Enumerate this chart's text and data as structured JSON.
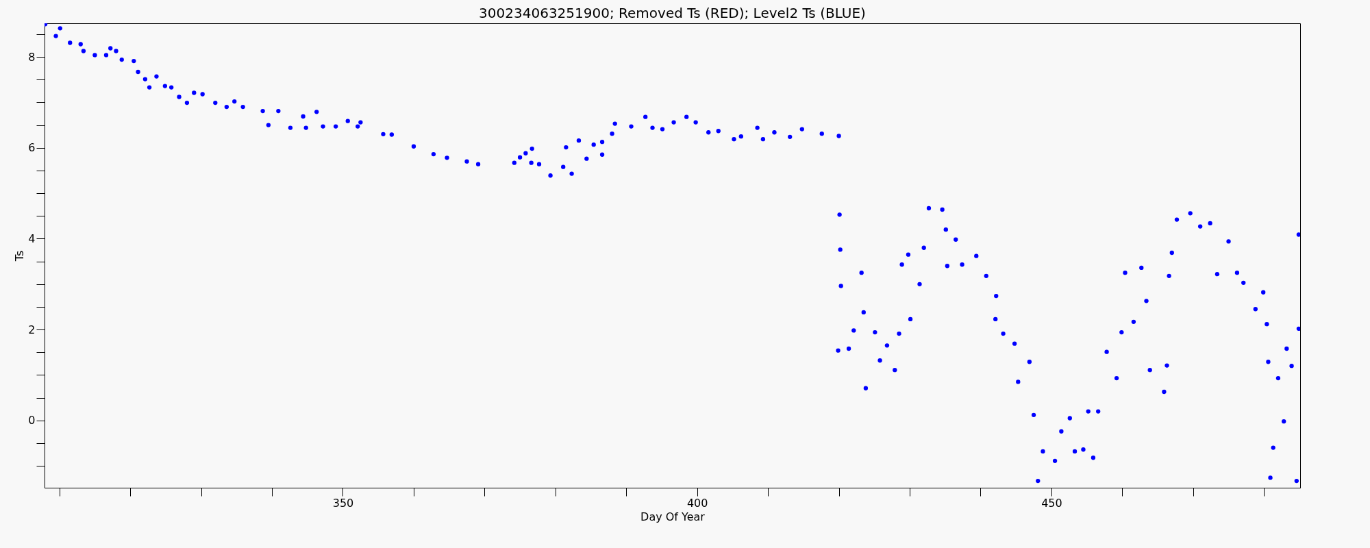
{
  "chart_data": {
    "type": "scatter",
    "title": "300234063251900; Removed Ts (RED); Level2 Ts (BLUE)",
    "xlabel": "Day Of Year",
    "ylabel": "Ts",
    "xlim": [
      307.9,
      485.1
    ],
    "xticks": [
      {
        "value": 310,
        "label": null
      },
      {
        "value": 320,
        "label": null
      },
      {
        "value": 330,
        "label": null
      },
      {
        "value": 340,
        "label": null
      },
      350,
      {
        "value": 360,
        "label": null
      },
      {
        "value": 370,
        "label": null
      },
      {
        "value": 380,
        "label": null
      },
      {
        "value": 390,
        "label": null
      },
      400,
      {
        "value": 410,
        "label": null
      },
      {
        "value": 420,
        "label": null
      },
      {
        "value": 430,
        "label": null
      },
      {
        "value": 440,
        "label": null
      },
      450,
      {
        "value": 460,
        "label": null
      },
      {
        "value": 470,
        "label": null
      },
      {
        "value": 480,
        "label": null
      }
    ],
    "ylim": [
      -1.48,
      8.74
    ],
    "yticks": [
      {
        "value": -1,
        "label": null
      },
      {
        "value": -0.5,
        "label": null
      },
      0,
      {
        "value": 0.5,
        "label": null
      },
      {
        "value": 1,
        "label": null
      },
      {
        "value": 1.5,
        "label": null
      },
      2,
      {
        "value": 2.5,
        "label": null
      },
      {
        "value": 3,
        "label": null
      },
      {
        "value": 3.5,
        "label": null
      },
      4,
      {
        "value": 4.5,
        "label": null
      },
      {
        "value": 5,
        "label": null
      },
      {
        "value": 5.5,
        "label": null
      },
      6,
      {
        "value": 6.5,
        "label": null
      },
      {
        "value": 7,
        "label": null
      },
      {
        "value": 7.5,
        "label": null
      },
      8,
      {
        "value": 8.5,
        "label": null
      }
    ],
    "grid": false,
    "marker": "circle",
    "series": [
      {
        "color": "#0000ff",
        "x": [
          308.0,
          309.5,
          310.1,
          311.5,
          313.0,
          313.4,
          315.0,
          316.6,
          317.2,
          318.0,
          318.8,
          320.5,
          321.1,
          322.1,
          322.7,
          323.7,
          324.9,
          325.8,
          326.9,
          328.0,
          329.0,
          330.2,
          332.0,
          333.6,
          334.7,
          335.9,
          338.7,
          339.5,
          340.9,
          342.6,
          344.4,
          344.8,
          346.3,
          347.2,
          349.0,
          350.7,
          352.1,
          352.5,
          355.7,
          356.9,
          360.0,
          362.8,
          364.7,
          367.5,
          369.1,
          374.2,
          375.0,
          375.8,
          376.6,
          376.7,
          377.7,
          379.3,
          381.1,
          381.5,
          382.3,
          383.3,
          384.4,
          385.4,
          386.6,
          386.6,
          388.0,
          388.4,
          390.7,
          392.7,
          393.7,
          395.1,
          396.7,
          398.5,
          399.8,
          401.6,
          403.0,
          405.2,
          406.2,
          408.5,
          409.3,
          410.9,
          413.1,
          414.8,
          417.6,
          420.0
        ],
        "values": [
          8.72,
          8.46,
          8.63,
          8.31,
          8.28,
          8.13,
          8.04,
          8.04,
          8.19,
          8.13,
          7.94,
          7.91,
          7.67,
          7.51,
          7.33,
          7.57,
          7.36,
          7.33,
          7.12,
          6.99,
          7.21,
          7.18,
          6.99,
          6.9,
          7.02,
          6.9,
          6.81,
          6.5,
          6.81,
          6.44,
          6.69,
          6.44,
          6.79,
          6.47,
          6.47,
          6.59,
          6.47,
          6.56,
          6.3,
          6.29,
          6.03,
          5.86,
          5.78,
          5.7,
          5.64,
          5.67,
          5.79,
          5.88,
          5.67,
          5.98,
          5.64,
          5.39,
          5.58,
          6.01,
          5.43,
          6.16,
          5.76,
          6.07,
          5.85,
          6.13,
          6.31,
          6.53,
          6.47,
          6.68,
          6.44,
          6.41,
          6.56,
          6.68,
          6.56,
          6.34,
          6.37,
          6.19,
          6.25,
          6.44,
          6.19,
          6.34,
          6.24,
          6.41,
          6.31,
          6.26
        ]
      },
      {
        "color": "#0000ff",
        "x": [
          420.1,
          420.2,
          420.3,
          419.9,
          421.4,
          422.1,
          423.2,
          423.5,
          423.8,
          425.1,
          425.8,
          426.8,
          427.9,
          428.5,
          428.9,
          429.8,
          430.1,
          431.4,
          432.0,
          432.7,
          434.6,
          435.1,
          435.3,
          436.5,
          437.4,
          439.4,
          440.8,
          442.2,
          442.1,
          443.2,
          444.8,
          445.3,
          446.9,
          447.5,
          448.1,
          448.8,
          450.5,
          451.4,
          452.6,
          453.3,
          454.5,
          455.2,
          455.9,
          456.6,
          457.8,
          459.2,
          459.9,
          460.4,
          461.6,
          462.7,
          463.4,
          463.9,
          465.9,
          466.3,
          466.6,
          467.0,
          467.7,
          469.6,
          471.0,
          472.4,
          473.4,
          475.0,
          476.2,
          477.1,
          478.8,
          479.9,
          480.4,
          480.6,
          480.9,
          481.3,
          482.0,
          482.8,
          483.2,
          483.9,
          484.6,
          484.9,
          484.9
        ],
        "values": [
          4.53,
          3.76,
          2.96,
          1.54,
          1.58,
          1.98,
          3.25,
          2.38,
          0.71,
          1.94,
          1.32,
          1.65,
          1.11,
          1.91,
          3.43,
          3.65,
          2.23,
          3.0,
          3.8,
          4.67,
          4.64,
          4.2,
          3.4,
          3.98,
          3.43,
          3.62,
          3.18,
          2.74,
          2.23,
          1.91,
          1.69,
          0.85,
          1.29,
          0.12,
          -1.33,
          -0.68,
          -0.89,
          -0.24,
          0.05,
          -0.68,
          -0.64,
          0.2,
          -0.82,
          0.2,
          1.51,
          0.93,
          1.94,
          3.25,
          2.17,
          3.36,
          2.63,
          1.11,
          0.63,
          1.21,
          3.18,
          3.69,
          4.42,
          4.56,
          4.27,
          4.34,
          3.22,
          3.94,
          3.25,
          3.03,
          2.45,
          2.82,
          2.12,
          1.29,
          -1.26,
          -0.6,
          0.93,
          -0.02,
          1.58,
          1.2,
          -1.33,
          2.02,
          4.09
        ]
      }
    ]
  }
}
